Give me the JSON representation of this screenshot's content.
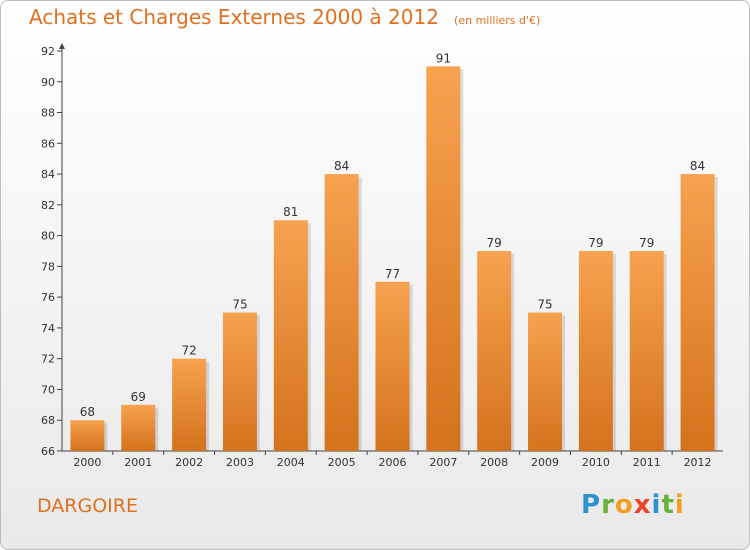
{
  "header": {
    "title": "Achats et Charges Externes 2000 à 2012",
    "subtitle": "(en milliers d'€)"
  },
  "footer": {
    "commune": "DARGOIRE",
    "brand": "Proxiti",
    "brand_letters": [
      {
        "ch": "P",
        "color": "#2e8fd1"
      },
      {
        "ch": "r",
        "color": "#6ab23e"
      },
      {
        "ch": "o",
        "color": "#f0a020"
      },
      {
        "ch": "x",
        "color": "#e8452a"
      },
      {
        "ch": "i",
        "color": "#2e8fd1"
      },
      {
        "ch": "t",
        "color": "#6ab23e"
      },
      {
        "ch": "i",
        "color": "#f0a020"
      }
    ]
  },
  "chart_data": {
    "type": "bar",
    "title": "Achats et Charges Externes 2000 à 2012",
    "subtitle": "(en milliers d'€)",
    "categories": [
      "2000",
      "2001",
      "2002",
      "2003",
      "2004",
      "2005",
      "2006",
      "2007",
      "2008",
      "2009",
      "2010",
      "2011",
      "2012"
    ],
    "values": [
      68,
      69,
      72,
      75,
      81,
      84,
      77,
      91,
      79,
      75,
      79,
      79,
      84
    ],
    "data_labels": [
      "68",
      "69",
      "72",
      "75",
      "81",
      "84",
      "77",
      "91",
      "79",
      "75",
      "79",
      "79",
      "84"
    ],
    "ylim": [
      66,
      92
    ],
    "yticks": [
      66,
      68,
      70,
      72,
      74,
      76,
      78,
      80,
      82,
      84,
      86,
      88,
      90,
      92
    ],
    "grid": false,
    "colors": {
      "bar_light": "#f7a24f",
      "bar_dark": "#d4721d",
      "axis": "#444444",
      "text": "#333333",
      "accent": "#e07020"
    }
  }
}
